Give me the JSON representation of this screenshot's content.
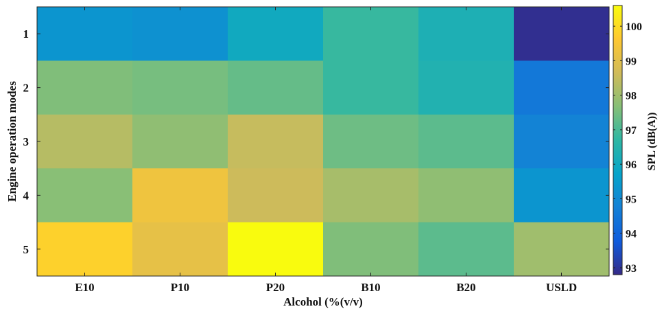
{
  "chart_data": {
    "type": "heatmap",
    "title": "",
    "xlabel": "Alcohol (%(v/v)",
    "ylabel": "Engine operation modes",
    "colorbar_label": "SPL (dB(A))",
    "x_categories": [
      "E10",
      "P10",
      "P20",
      "B10",
      "B20",
      "USLD"
    ],
    "y_categories": [
      "1",
      "2",
      "3",
      "4",
      "5"
    ],
    "values": [
      [
        95.3,
        95.2,
        96.0,
        96.8,
        96.3,
        92.9
      ],
      [
        97.6,
        97.5,
        97.3,
        96.8,
        96.4,
        94.5
      ],
      [
        98.3,
        97.8,
        98.5,
        97.4,
        97.2,
        94.8
      ],
      [
        97.7,
        99.3,
        98.6,
        98.1,
        97.8,
        95.3
      ],
      [
        99.8,
        99.1,
        100.6,
        97.6,
        97.2,
        98.0
      ]
    ],
    "color_range": [
      92.8,
      100.6
    ],
    "colorbar_ticks": [
      "93",
      "94",
      "95",
      "96",
      "97",
      "98",
      "99",
      "100"
    ],
    "colormap": "parula",
    "colors": {
      "parula_stops": [
        "#352a87",
        "#0f5cdd",
        "#1481d6",
        "#06a4ca",
        "#2eb7a4",
        "#87bf77",
        "#d1bb59",
        "#fec832",
        "#f9fb0e"
      ]
    }
  }
}
